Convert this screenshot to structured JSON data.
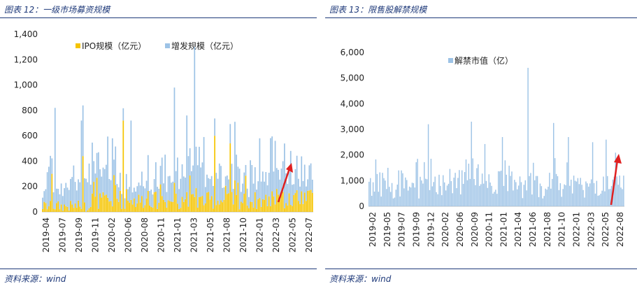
{
  "left": {
    "title": "图表 12：一级市场募资规模",
    "source": "资料来源：wind"
  },
  "right": {
    "title": "图表 13：限售股解禁规模",
    "source": "资料来源：wind"
  },
  "colors": {
    "title": "#1f3a7a",
    "ipo": "#f5c400",
    "refi": "#9dc3e6",
    "unlock": "#9dc3e6",
    "arrow": "#e02020"
  },
  "chart_data": [
    {
      "type": "bar",
      "stacked": true,
      "series": [
        {
          "name": "IPO规模（亿元）"
        },
        {
          "name": "增发规模（亿元）"
        }
      ],
      "legend_position": "top-center",
      "ylim": [
        0,
        1400
      ],
      "yticks": [
        0,
        200,
        400,
        600,
        800,
        1000,
        1200,
        1400
      ],
      "ytick_labels": [
        "0",
        "200",
        "400",
        "600",
        "800",
        "1,000",
        "1,200",
        "1,400"
      ],
      "xtick_labels": [
        "2019-04",
        "2019-07",
        "2019-09",
        "2019-11",
        "2020-02",
        "2020-06",
        "2020-08",
        "2020-11",
        "2021-01",
        "2021-03",
        "2021-05",
        "2021-08",
        "2021-10",
        "2022-01",
        "2022-03",
        "2022-05",
        "2022-07"
      ],
      "approx_bar_count": 175,
      "notable_peaks": {
        "max_total": 1300,
        "max_ipo": 720,
        "note": "细粒度柱状图，数值由图形估读"
      },
      "annotation": "red-arrow-upward-at-end"
    },
    {
      "type": "bar",
      "series": [
        {
          "name": "解禁市值（亿）"
        }
      ],
      "legend_position": "top-center",
      "ylim": [
        0,
        6000
      ],
      "yticks": [
        0,
        1000,
        2000,
        3000,
        4000,
        5000,
        6000
      ],
      "ytick_labels": [
        "0",
        "1,000",
        "2,000",
        "3,000",
        "4,000",
        "5,000",
        "6,000"
      ],
      "xtick_labels": [
        "2019-02",
        "2019-05",
        "2019-07",
        "2019-09",
        "2019-12",
        "2020-02",
        "2020-06",
        "2020-09",
        "2020-11",
        "2021-01",
        "2021-04",
        "2021-06",
        "2021-08",
        "2021-10",
        "2022-01",
        "2022-03",
        "2022-05",
        "2022-08"
      ],
      "approx_bar_count": 190,
      "notable_peaks": {
        "max": 5400
      },
      "annotation": "red-arrow-upward-at-end"
    }
  ]
}
